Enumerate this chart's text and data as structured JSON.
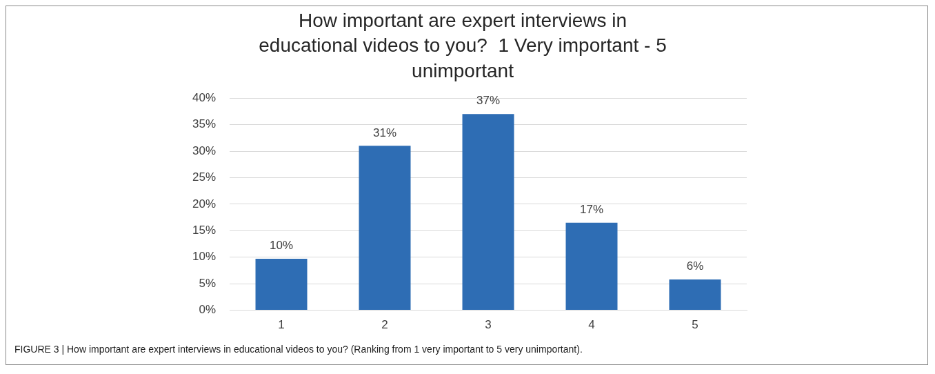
{
  "chart_data": {
    "type": "bar",
    "title": "How important are expert interviews in educational videos to you?  1 Very important - 5 unimportant",
    "categories": [
      "1",
      "2",
      "3",
      "4",
      "5"
    ],
    "values": [
      9.7,
      31,
      37,
      16.5,
      5.8
    ],
    "value_labels": [
      "10%",
      "31%",
      "37%",
      "17%",
      "6%"
    ],
    "color": "#2e6db4",
    "ylim": [
      0,
      40
    ],
    "yticks": [
      {
        "value": 0,
        "label": "0%"
      },
      {
        "value": 5,
        "label": "5%"
      },
      {
        "value": 10,
        "label": "10%"
      },
      {
        "value": 15,
        "label": "15%"
      },
      {
        "value": 20,
        "label": "20%"
      },
      {
        "value": 25,
        "label": "25%"
      },
      {
        "value": 30,
        "label": "30%"
      },
      {
        "value": 35,
        "label": "35%"
      },
      {
        "value": 40,
        "label": "40%"
      }
    ],
    "grid": "y",
    "legend": false,
    "annotations": [
      "FIGURE 3 | How important are expert interviews in educational videos to you? (Ranking from 1 very important to 5 very unimportant)."
    ]
  }
}
